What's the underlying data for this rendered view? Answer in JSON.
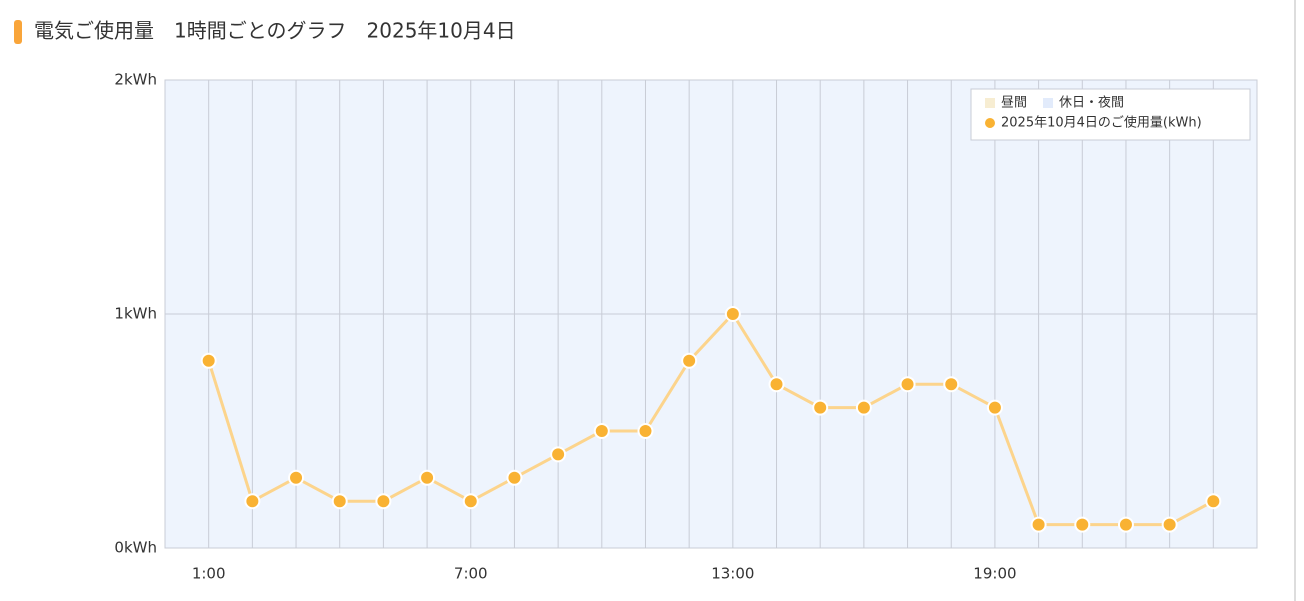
{
  "chart_data": {
    "type": "line",
    "title": "電気ご使用量　1時間ごとのグラフ　2025年10月4日",
    "categories": [
      "1:00",
      null,
      null,
      null,
      null,
      null,
      "7:00",
      null,
      null,
      null,
      null,
      null,
      "13:00",
      null,
      null,
      null,
      null,
      null,
      "19:00",
      null,
      null,
      null,
      null,
      null
    ],
    "series": [
      {
        "name": "2025年10月4日のご使用量(kWh)",
        "color": "#f9b233",
        "line_color": "#fcd48c",
        "values": [
          0.8,
          0.2,
          0.3,
          0.2,
          0.2,
          0.3,
          0.2,
          0.3,
          0.4,
          0.5,
          0.5,
          0.8,
          1.0,
          0.7,
          0.6,
          0.6,
          0.7,
          0.7,
          0.6,
          0.1,
          0.1,
          0.1,
          0.1,
          0.2
        ]
      }
    ],
    "background_legend": [
      {
        "name": "昼間",
        "color": "#f7edd2"
      },
      {
        "name": "休日・夜間",
        "color": "#e2ebfb"
      }
    ],
    "plot_background": "#eef4fd",
    "ylim": [
      0,
      2
    ],
    "yticks": [
      {
        "value": 0,
        "label": "0kWh"
      },
      {
        "value": 1,
        "label": "1kWh"
      },
      {
        "value": 2,
        "label": "2kWh"
      }
    ],
    "grid": true,
    "legend": "top-right"
  }
}
